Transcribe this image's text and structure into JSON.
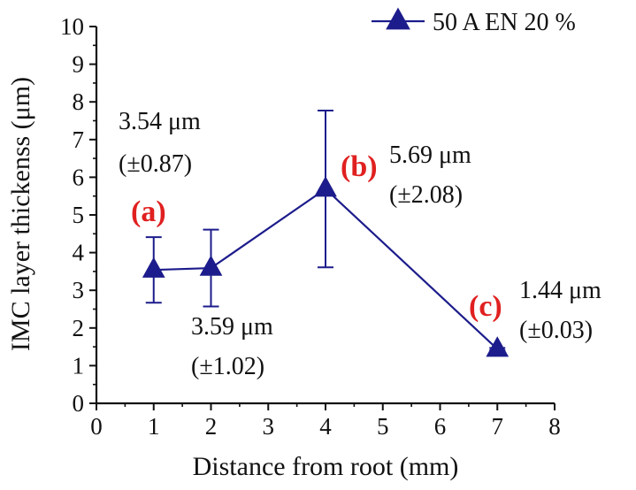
{
  "chart_data": {
    "type": "line",
    "xlabel": "Distance from root (mm)",
    "ylabel": "IMC layer thickenss (μm)",
    "xlim": [
      0,
      8
    ],
    "ylim": [
      0,
      10
    ],
    "x_ticks": [
      "0",
      "1",
      "2",
      "3",
      "4",
      "5",
      "6",
      "7",
      "8"
    ],
    "y_ticks": [
      "0",
      "1",
      "2",
      "3",
      "4",
      "5",
      "6",
      "7",
      "8",
      "9",
      "10"
    ],
    "grid": false,
    "legend_position": "top-right",
    "series": [
      {
        "name": "50 A EN 20 %",
        "color": "#1c1c8c",
        "marker": "triangle",
        "x": [
          1,
          2,
          4,
          7
        ],
        "y": [
          3.54,
          3.59,
          5.69,
          1.44
        ],
        "error": [
          0.87,
          1.02,
          2.08,
          0.03
        ]
      }
    ],
    "annotations": [
      {
        "x": 1,
        "line1": "3.54 μm",
        "line2": "(±0.87)"
      },
      {
        "x": 2,
        "line1": "3.59 μm",
        "line2": "(±1.02)"
      },
      {
        "x": 4,
        "line1": "5.69 μm",
        "line2": "(±2.08)"
      },
      {
        "x": 7,
        "line1": "1.44 μm",
        "line2": "(±0.03)"
      }
    ],
    "point_labels": [
      {
        "x": 1,
        "text": "(a)"
      },
      {
        "x": 4,
        "text": "(b)"
      },
      {
        "x": 7,
        "text": "(c)"
      }
    ],
    "label_color": "#e02020"
  }
}
